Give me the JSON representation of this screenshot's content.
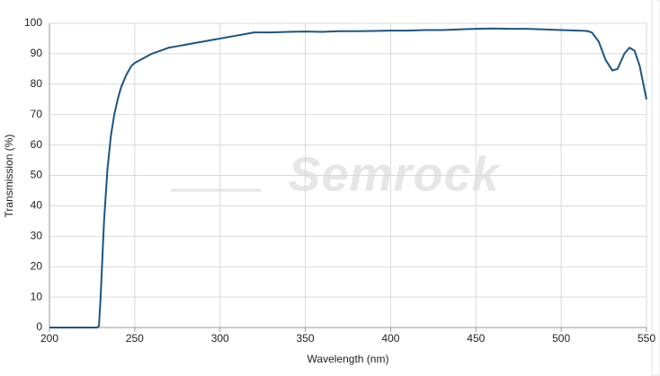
{
  "chart_data": {
    "type": "line",
    "watermark": "Semrock",
    "x_label": "Wavelength (nm)",
    "y_label": "Transmission (%)",
    "color": "#1b5583",
    "grid": true,
    "xlim": [
      200,
      550
    ],
    "xticks": [
      200,
      250,
      300,
      350,
      400,
      450,
      500,
      550
    ],
    "ylim": [
      0,
      100
    ],
    "yticks": [
      0,
      10,
      20,
      30,
      40,
      50,
      60,
      70,
      80,
      90,
      100
    ],
    "x": [
      200,
      210,
      220,
      228,
      229,
      230,
      232,
      234,
      236,
      238,
      240,
      242,
      245,
      248,
      250,
      255,
      260,
      265,
      270,
      275,
      280,
      285,
      290,
      295,
      300,
      305,
      310,
      315,
      320,
      325,
      330,
      340,
      350,
      360,
      370,
      380,
      390,
      400,
      410,
      420,
      430,
      440,
      450,
      460,
      470,
      480,
      490,
      500,
      510,
      515,
      518,
      522,
      526,
      530,
      533,
      537,
      540,
      543,
      546,
      550
    ],
    "values": [
      0,
      0,
      0,
      0,
      0.5,
      10,
      35,
      52,
      63,
      70,
      75,
      79,
      83,
      86,
      87,
      88.5,
      90,
      91,
      92,
      92.5,
      93,
      93.5,
      94,
      94.5,
      95,
      95.5,
      96,
      96.5,
      97,
      97,
      97,
      97.2,
      97.3,
      97.2,
      97.4,
      97.4,
      97.5,
      97.6,
      97.6,
      97.8,
      97.8,
      98,
      98.2,
      98.3,
      98.2,
      98.2,
      98,
      97.8,
      97.6,
      97.5,
      97,
      94,
      88,
      84.5,
      85,
      90,
      92,
      91,
      86,
      75
    ]
  }
}
